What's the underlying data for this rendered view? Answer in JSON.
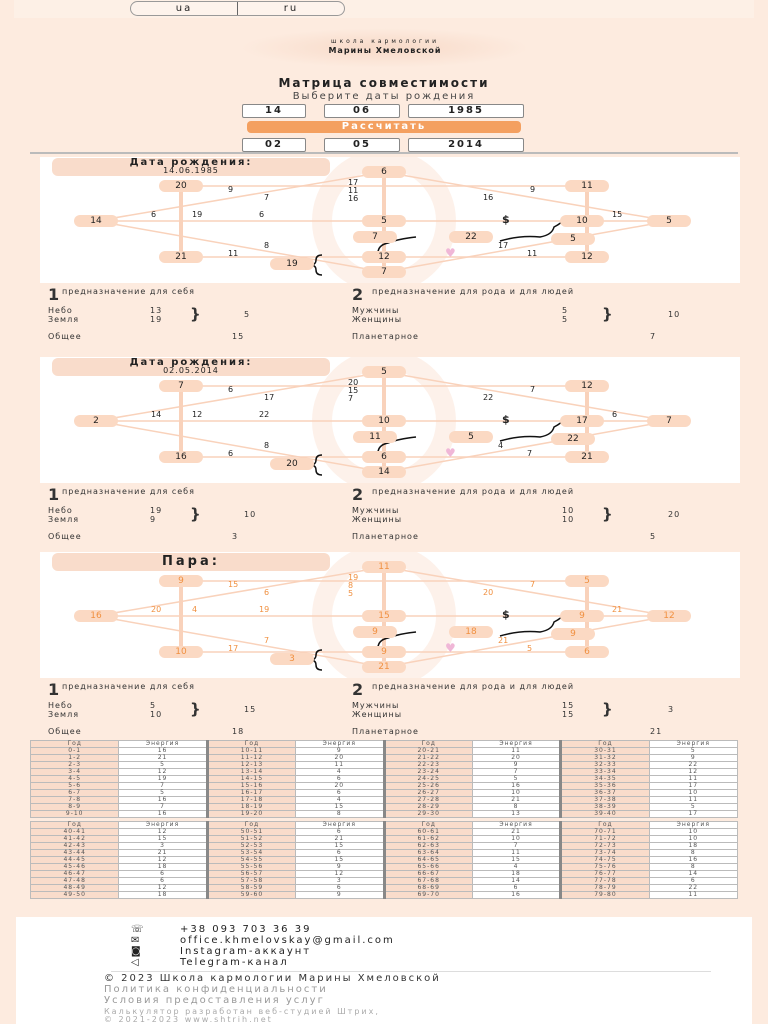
{
  "lang": {
    "ua": "ua",
    "ru": "ru"
  },
  "logo": {
    "line1": "школа кармологии",
    "line2": "Марины Хмеловской"
  },
  "header": {
    "title": "Матрица совместимости",
    "subtitle": "Выберите даты рождения"
  },
  "date1": {
    "day": "14",
    "month": "06",
    "year": "1985"
  },
  "date2": {
    "day": "02",
    "month": "05",
    "year": "2014"
  },
  "calc_button": "Рассчитать",
  "stat_labels": {
    "p1_num": "1",
    "p1": "предназначение для себя",
    "p2_num": "2",
    "p2": "предназначение для рода и для людей",
    "sky": "Небо",
    "earth": "Земля",
    "common": "Общее",
    "men": "Мужчины",
    "women": "Женщины",
    "planet": "Планетарное"
  },
  "matrices": [
    {
      "title": "Дата рождения:",
      "date": "14.06.1985",
      "style": "normal",
      "nodes": {
        "top": "6",
        "tl": "20",
        "tr": "11",
        "left": "14",
        "center": "5",
        "ri": "10",
        "right": "5",
        "bl": "21",
        "bc": "12",
        "br": "12",
        "bottom": "7",
        "s7": "7",
        "s22": "22",
        "s5": "5",
        "s19": "19"
      },
      "labels": {
        "v1": "17",
        "v2": "11",
        "v3": "16",
        "a1": "9",
        "a2": "7",
        "b1": "9",
        "b2": "16",
        "h1": "6",
        "h2": "19",
        "h3": "6",
        "h4": "15",
        "c1": "8",
        "c2": "11",
        "d1": "17",
        "d2": "11"
      },
      "stats": {
        "sky": "13",
        "earth": "19",
        "p1": "5",
        "common": "15",
        "men": "5",
        "women": "5",
        "p2": "10",
        "planet": "7"
      }
    },
    {
      "title": "Дата рождения:",
      "date": "02.05.2014",
      "style": "normal",
      "nodes": {
        "top": "5",
        "tl": "7",
        "tr": "12",
        "left": "2",
        "center": "10",
        "ri": "17",
        "right": "7",
        "bl": "16",
        "bc": "6",
        "br": "21",
        "bottom": "14",
        "s7": "11",
        "s22": "5",
        "s5": "22",
        "s19": "20"
      },
      "labels": {
        "v1": "20",
        "v2": "15",
        "v3": "7",
        "a1": "6",
        "a2": "17",
        "b1": "7",
        "b2": "22",
        "h1": "14",
        "h2": "12",
        "h3": "22",
        "h4": "6",
        "c1": "8",
        "c2": "6",
        "d1": "4",
        "d2": "7"
      },
      "stats": {
        "sky": "19",
        "earth": "9",
        "p1": "10",
        "common": "3",
        "men": "10",
        "women": "10",
        "p2": "20",
        "planet": "5"
      }
    },
    {
      "title": "Пара:",
      "date": "",
      "style": "orange",
      "nodes": {
        "top": "11",
        "tl": "9",
        "tr": "5",
        "left": "16",
        "center": "15",
        "ri": "9",
        "right": "12",
        "bl": "10",
        "bc": "9",
        "br": "6",
        "bottom": "21",
        "s7": "9",
        "s22": "18",
        "s5": "9",
        "s19": "3"
      },
      "labels": {
        "v1": "19",
        "v2": "8",
        "v3": "5",
        "a1": "15",
        "a2": "6",
        "b1": "7",
        "b2": "20",
        "h1": "20",
        "h2": "4",
        "h3": "19",
        "h4": "21",
        "c1": "7",
        "c2": "17",
        "d1": "21",
        "d2": "5"
      },
      "stats": {
        "sky": "5",
        "earth": "10",
        "p1": "15",
        "common": "18",
        "men": "15",
        "women": "15",
        "p2": "3",
        "planet": "21"
      }
    }
  ],
  "table": {
    "col_year": "Год",
    "col_energy": "Энергия",
    "blocks": [
      [
        [
          [
            "0-1",
            "16"
          ],
          [
            "1-2",
            "21"
          ],
          [
            "2-3",
            "5"
          ],
          [
            "3-4",
            "12"
          ],
          [
            "4-5",
            "19"
          ],
          [
            "5-6",
            "7"
          ],
          [
            "6-7",
            "5"
          ],
          [
            "7-8",
            "16"
          ],
          [
            "8-9",
            "7"
          ],
          [
            "9-10",
            "16"
          ]
        ],
        [
          [
            "10-11",
            "9"
          ],
          [
            "11-12",
            "20"
          ],
          [
            "12-13",
            "11"
          ],
          [
            "13-14",
            "4"
          ],
          [
            "14-15",
            "6"
          ],
          [
            "15-16",
            "20"
          ],
          [
            "16-17",
            "6"
          ],
          [
            "17-18",
            "4"
          ],
          [
            "18-19",
            "15"
          ],
          [
            "19-20",
            "8"
          ]
        ],
        [
          [
            "20-21",
            "11"
          ],
          [
            "21-22",
            "20"
          ],
          [
            "22-23",
            "9"
          ],
          [
            "23-24",
            "7"
          ],
          [
            "24-25",
            "5"
          ],
          [
            "25-26",
            "16"
          ],
          [
            "26-27",
            "10"
          ],
          [
            "27-28",
            "21"
          ],
          [
            "28-29",
            "8"
          ],
          [
            "29-30",
            "13"
          ]
        ],
        [
          [
            "30-31",
            "5"
          ],
          [
            "31-32",
            "9"
          ],
          [
            "32-33",
            "22"
          ],
          [
            "33-34",
            "12"
          ],
          [
            "34-35",
            "11"
          ],
          [
            "35-36",
            "17"
          ],
          [
            "36-37",
            "10"
          ],
          [
            "37-38",
            "11"
          ],
          [
            "38-39",
            "5"
          ],
          [
            "39-40",
            "17"
          ]
        ]
      ],
      [
        [
          [
            "40-41",
            "12"
          ],
          [
            "41-42",
            "15"
          ],
          [
            "42-43",
            "3"
          ],
          [
            "43-44",
            "21"
          ],
          [
            "44-45",
            "12"
          ],
          [
            "45-46",
            "18"
          ],
          [
            "46-47",
            "6"
          ],
          [
            "47-48",
            "6"
          ],
          [
            "48-49",
            "12"
          ],
          [
            "49-50",
            "18"
          ]
        ],
        [
          [
            "50-51",
            "6"
          ],
          [
            "51-52",
            "21"
          ],
          [
            "52-53",
            "15"
          ],
          [
            "53-54",
            "6"
          ],
          [
            "54-55",
            "15"
          ],
          [
            "55-56",
            "9"
          ],
          [
            "56-57",
            "12"
          ],
          [
            "57-58",
            "3"
          ],
          [
            "58-59",
            "6"
          ],
          [
            "59-60",
            "9"
          ]
        ],
        [
          [
            "60-61",
            "21"
          ],
          [
            "61-62",
            "10"
          ],
          [
            "62-63",
            "7"
          ],
          [
            "63-64",
            "11"
          ],
          [
            "64-65",
            "15"
          ],
          [
            "65-66",
            "4"
          ],
          [
            "66-67",
            "18"
          ],
          [
            "67-68",
            "14"
          ],
          [
            "68-69",
            "6"
          ],
          [
            "69-70",
            "16"
          ]
        ],
        [
          [
            "70-71",
            "10"
          ],
          [
            "71-72",
            "10"
          ],
          [
            "72-73",
            "18"
          ],
          [
            "73-74",
            "8"
          ],
          [
            "74-75",
            "16"
          ],
          [
            "75-76",
            "8"
          ],
          [
            "76-77",
            "14"
          ],
          [
            "77-78",
            "6"
          ],
          [
            "78-79",
            "22"
          ],
          [
            "79-80",
            "11"
          ]
        ]
      ]
    ]
  },
  "footer": {
    "phone": "+38 093 703 36 39",
    "email": "office.khmelovskay@gmail.com",
    "instagram": "Instagram-аккаунт",
    "telegram": "Telegram-канал",
    "copyright": "© 2023 Школа кармологии Марины Хмеловской",
    "privacy": "Политика конфиденциальности",
    "terms": "Условия предоставления услуг",
    "dev1": "Калькулятор разработан веб-студией Штрих,",
    "dev2": "© 2021-2023 www.shtrih.net"
  }
}
